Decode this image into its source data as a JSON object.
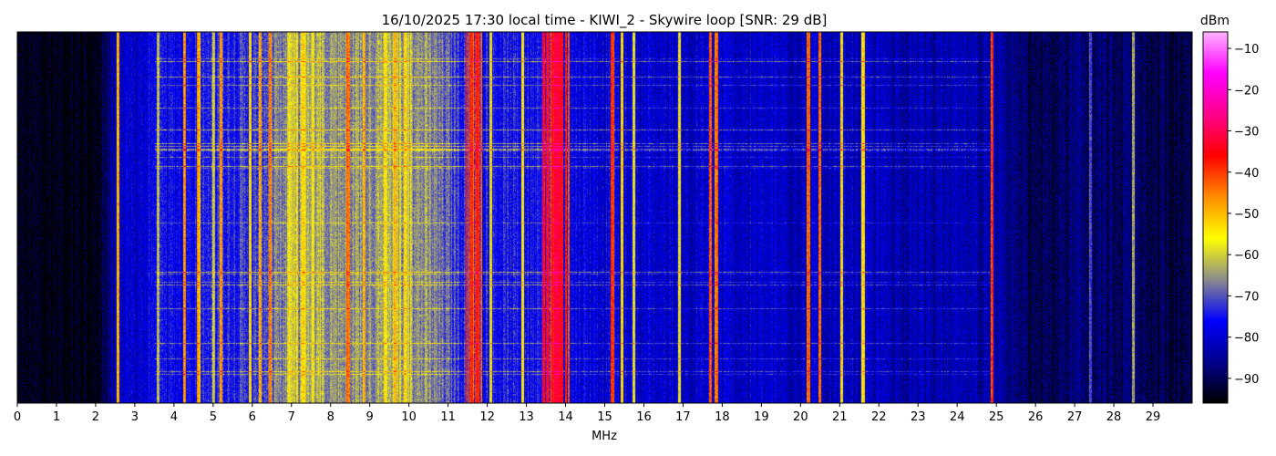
{
  "chart_data": {
    "type": "heatmap",
    "title": "16/10/2025 17:30 local time - KIWI_2 - Skywire loop [SNR: 29 dB]",
    "xlabel": "MHz",
    "ylabel": "",
    "x_range": [
      0,
      30
    ],
    "x_ticks": [
      "0",
      "1",
      "2",
      "3",
      "4",
      "5",
      "6",
      "7",
      "8",
      "9",
      "10",
      "11",
      "12",
      "13",
      "14",
      "15",
      "16",
      "17",
      "18",
      "19",
      "20",
      "21",
      "22",
      "23",
      "24",
      "25",
      "26",
      "27",
      "28",
      "29"
    ],
    "colorbar": {
      "label": "dBm",
      "range": [
        -96,
        -6
      ],
      "ticks": [
        "−10",
        "−20",
        "−30",
        "−40",
        "−50",
        "−60",
        "−70",
        "−80",
        "−90"
      ],
      "tick_values": [
        -10,
        -20,
        -30,
        -40,
        -50,
        -60,
        -70,
        -80,
        -90
      ],
      "colors": [
        "#000000",
        "#00008c",
        "#0000ff",
        "#8c8c8c",
        "#ffff00",
        "#ff8c00",
        "#ff0000",
        "#ff008c",
        "#ff00ff",
        "#ffb4ff"
      ]
    },
    "grid": false,
    "noise_floor_dbm": [
      {
        "mhz": 0,
        "dbm": -95
      },
      {
        "mhz": 2,
        "dbm": -95
      },
      {
        "mhz": 2.6,
        "dbm": -82
      },
      {
        "mhz": 3.5,
        "dbm": -78
      },
      {
        "mhz": 6,
        "dbm": -72
      },
      {
        "mhz": 7.5,
        "dbm": -64
      },
      {
        "mhz": 10.5,
        "dbm": -66
      },
      {
        "mhz": 11.5,
        "dbm": -74
      },
      {
        "mhz": 16,
        "dbm": -80
      },
      {
        "mhz": 22,
        "dbm": -82
      },
      {
        "mhz": 25,
        "dbm": -84
      },
      {
        "mhz": 26,
        "dbm": -91
      },
      {
        "mhz": 27,
        "dbm": -88
      },
      {
        "mhz": 29.9,
        "dbm": -91
      }
    ],
    "signals": [
      {
        "mhz": 2.58,
        "dbm": -50
      },
      {
        "mhz": 3.6,
        "dbm": -60
      },
      {
        "mhz": 4.28,
        "dbm": -45
      },
      {
        "mhz": 4.63,
        "dbm": -50
      },
      {
        "mhz": 5.02,
        "dbm": -60
      },
      {
        "mhz": 5.2,
        "dbm": -48
      },
      {
        "mhz": 5.95,
        "dbm": -55
      },
      {
        "mhz": 6.2,
        "dbm": -48
      },
      {
        "mhz": 6.45,
        "dbm": -46
      },
      {
        "mhz": 7.3,
        "dbm": -52
      },
      {
        "mhz": 7.55,
        "dbm": -55
      },
      {
        "mhz": 8.45,
        "dbm": -45
      },
      {
        "mhz": 8.85,
        "dbm": -50
      },
      {
        "mhz": 9.4,
        "dbm": -55
      },
      {
        "mhz": 9.65,
        "dbm": -50
      },
      {
        "mhz": 9.9,
        "dbm": -52
      },
      {
        "mhz": 11.6,
        "dbm": -40
      },
      {
        "mhz": 11.75,
        "dbm": -38
      },
      {
        "mhz": 12.1,
        "dbm": -55
      },
      {
        "mhz": 12.9,
        "dbm": -56
      },
      {
        "mhz": 13.55,
        "dbm": -45
      },
      {
        "mhz": 13.75,
        "dbm": -32
      },
      {
        "mhz": 13.9,
        "dbm": -35
      },
      {
        "mhz": 15.2,
        "dbm": -40
      },
      {
        "mhz": 15.45,
        "dbm": -55
      },
      {
        "mhz": 15.75,
        "dbm": -58
      },
      {
        "mhz": 16.9,
        "dbm": -55
      },
      {
        "mhz": 17.7,
        "dbm": -42
      },
      {
        "mhz": 17.85,
        "dbm": -45
      },
      {
        "mhz": 20.2,
        "dbm": -45
      },
      {
        "mhz": 20.5,
        "dbm": -42
      },
      {
        "mhz": 21.05,
        "dbm": -55
      },
      {
        "mhz": 21.6,
        "dbm": -55
      },
      {
        "mhz": 24.89,
        "dbm": -40
      },
      {
        "mhz": 27.4,
        "dbm": -70
      },
      {
        "mhz": 28.5,
        "dbm": -62
      }
    ],
    "wide_bands": [
      {
        "from_mhz": 6.9,
        "to_mhz": 7.8,
        "dbm": -60
      },
      {
        "from_mhz": 9.3,
        "to_mhz": 10.2,
        "dbm": -60
      },
      {
        "from_mhz": 11.45,
        "to_mhz": 11.9,
        "dbm": -42
      },
      {
        "from_mhz": 13.4,
        "to_mhz": 14.1,
        "dbm": -36
      }
    ]
  }
}
